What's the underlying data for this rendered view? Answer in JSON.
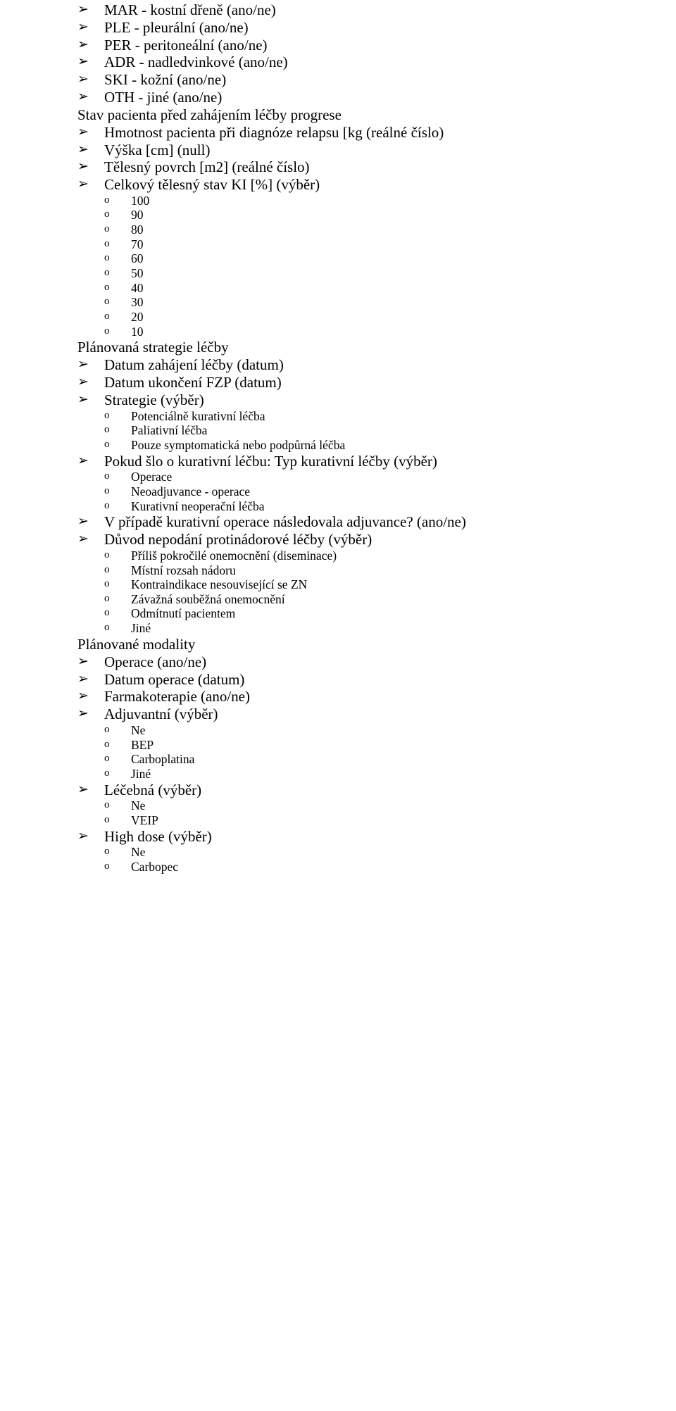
{
  "glyphs": {
    "l1": "➢",
    "l2": "o"
  },
  "s1_items": [
    "MAR - kostní dřeně (ano/ne)",
    "PLE - pleurální (ano/ne)",
    "PER - peritoneální (ano/ne)",
    "ADR - nadledvinkové (ano/ne)",
    "SKI - kožní (ano/ne)",
    "OTH - jiné (ano/ne)"
  ],
  "h1": "Stav pacienta před zahájením léčby progrese",
  "s2_items": [
    "Hmotnost pacienta při diagnóze relapsu [kg (reálné číslo)",
    "Výška [cm] (null)",
    "Tělesný povrch [m2] (reálné číslo)",
    "Celkový tělesný stav KI [%] (výběr)"
  ],
  "s2_sub": [
    "100",
    "90",
    "80",
    "70",
    "60",
    "50",
    "40",
    "30",
    "20",
    "10"
  ],
  "h2": "Plánovaná strategie léčby",
  "s3a": "Datum zahájení léčby (datum)",
  "s3b": "Datum ukončení FZP (datum)",
  "s3c": "Strategie (výběr)",
  "s3c_sub": [
    "Potenciálně kurativní léčba",
    "Paliativní léčba",
    "Pouze symptomatická nebo podpůrná léčba"
  ],
  "s3d": "Pokud šlo o kurativní léčbu: Typ kurativní léčby (výběr)",
  "s3d_sub": [
    "Operace",
    "Neoadjuvance - operace",
    "Kurativní neoperační léčba"
  ],
  "s3e": "V případě kurativní operace následovala adjuvance? (ano/ne)",
  "s3f": "Důvod nepodání protinádorové léčby (výběr)",
  "s3f_sub": [
    "Příliš pokročilé onemocnění (diseminace)",
    "Místní rozsah nádoru",
    "Kontraindikace nesouvisející se ZN",
    "Závažná souběžná onemocnění",
    "Odmítnutí pacientem",
    "Jiné"
  ],
  "h3": "Plánované modality",
  "s4a": "Operace (ano/ne)",
  "s4b": "Datum operace (datum)",
  "s4c": "Farmakoterapie (ano/ne)",
  "s4d": "Adjuvantní (výběr)",
  "s4d_sub": [
    "Ne",
    "BEP",
    "Carboplatina",
    "Jiné"
  ],
  "s4e": "Léčebná (výběr)",
  "s4e_sub": [
    "Ne",
    "VEIP"
  ],
  "s4f": "High dose (výběr)",
  "s4f_sub": [
    "Ne",
    "Carbopec"
  ]
}
